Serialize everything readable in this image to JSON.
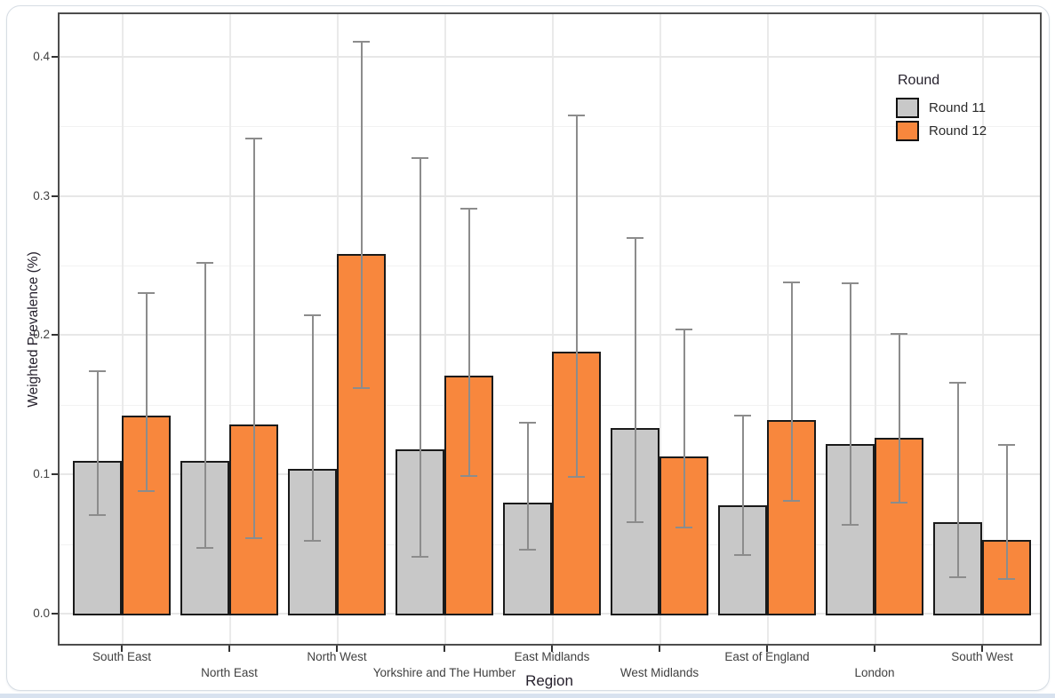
{
  "figure": {
    "legend": {
      "title": "Round",
      "items": [
        {
          "label": "Round 11",
          "color": "#C8C8C8"
        },
        {
          "label": "Round 12",
          "color": "#F8873D"
        }
      ]
    },
    "x_axis": {
      "title": "Region"
    },
    "y_axis": {
      "title": "Weighted Prevalence (%)",
      "ticks": [
        "0.0",
        "0.1",
        "0.2",
        "0.3",
        "0.4"
      ]
    }
  },
  "chart_data": {
    "type": "bar",
    "title": "",
    "xlabel": "Region",
    "ylabel": "Weighted Prevalence (%)",
    "ylim": [
      0,
      0.43
    ],
    "grid": "on",
    "legend_title": "Round",
    "legend_position": "inside top-right",
    "categories": [
      "South East",
      "North East",
      "North West",
      "Yorkshire and The Humber",
      "East Midlands",
      "West Midlands",
      "East of England",
      "London",
      "South West"
    ],
    "label_rows": [
      1,
      2,
      1,
      2,
      1,
      2,
      1,
      2,
      1
    ],
    "series": [
      {
        "name": "Round 11",
        "color": "#C8C8C8",
        "values": [
          0.11,
          0.11,
          0.104,
          0.118,
          0.08,
          0.133,
          0.078,
          0.122,
          0.066
        ],
        "ci_low": [
          0.071,
          0.047,
          0.052,
          0.041,
          0.046,
          0.066,
          0.042,
          0.064,
          0.026
        ],
        "ci_high": [
          0.174,
          0.252,
          0.214,
          0.327,
          0.137,
          0.27,
          0.142,
          0.237,
          0.166
        ]
      },
      {
        "name": "Round 12",
        "color": "#F8873D",
        "values": [
          0.142,
          0.136,
          0.258,
          0.171,
          0.188,
          0.113,
          0.139,
          0.126,
          0.053
        ],
        "ci_low": [
          0.088,
          0.054,
          0.162,
          0.099,
          0.098,
          0.062,
          0.081,
          0.08,
          0.025
        ],
        "ci_high": [
          0.23,
          0.341,
          0.411,
          0.291,
          0.358,
          0.204,
          0.238,
          0.201,
          0.121
        ]
      }
    ]
  },
  "colors": {
    "error_bar": "#8C8C8C",
    "bar_border": "#1A1A1A",
    "panel_border": "#4D4D4D",
    "grid_major": "#E7E7E7",
    "grid_minor": "#F2F2F2",
    "grid_vertical": "#EAEAEA"
  }
}
